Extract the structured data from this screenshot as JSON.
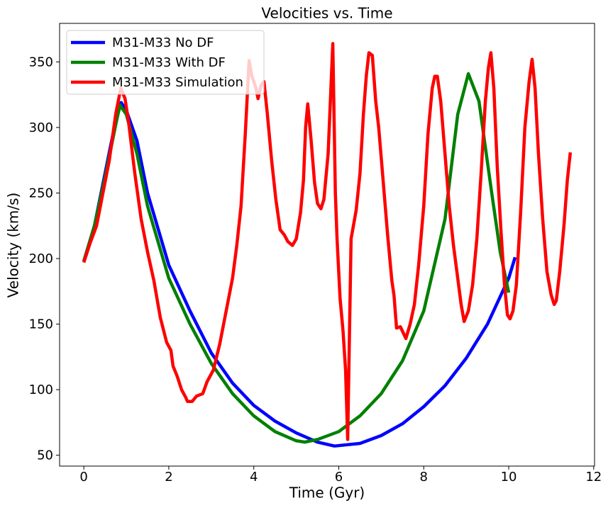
{
  "chart_data": {
    "type": "line",
    "title": "Velocities vs. Time",
    "x_label": "Time (Gyr)",
    "y_label": "Velocity (km/s)",
    "xlim": [
      -0.57,
      12.02
    ],
    "ylim": [
      41.7,
      379.4
    ],
    "xticks": [
      0,
      2,
      4,
      6,
      8,
      10,
      12
    ],
    "yticks": [
      50,
      100,
      150,
      200,
      250,
      300,
      350
    ],
    "legend": "upper left",
    "series": [
      {
        "name": "M31-M33 No DF",
        "color": "#0000ff",
        "x": [
          0,
          0.25,
          0.5,
          0.75,
          0.88,
          1,
          1.25,
          1.5,
          2,
          2.5,
          3,
          3.5,
          4,
          4.5,
          5,
          5.5,
          5.9,
          6.5,
          7,
          7.5,
          8,
          8.5,
          9,
          9.5,
          10,
          10.15
        ],
        "values": [
          198,
          225,
          265,
          305,
          319,
          313,
          290,
          250,
          195,
          160,
          128,
          105,
          88,
          76,
          67,
          60,
          57,
          59,
          65,
          74,
          87,
          103,
          124,
          150,
          185,
          201
        ]
      },
      {
        "name": "M31-M33 With DF",
        "color": "#008000",
        "x": [
          0,
          0.25,
          0.5,
          0.75,
          0.85,
          1,
          1.25,
          1.5,
          2,
          2.5,
          3,
          3.5,
          4,
          4.5,
          5,
          5.2,
          5.5,
          6,
          6.5,
          7,
          7.5,
          8,
          8.5,
          8.8,
          9.05,
          9.3,
          9.6,
          9.8,
          10
        ],
        "values": [
          198,
          225,
          262,
          302,
          317,
          310,
          280,
          240,
          185,
          150,
          120,
          97,
          80,
          68,
          61,
          60,
          62,
          68,
          80,
          97,
          122,
          160,
          230,
          310,
          341,
          320,
          250,
          205,
          174
        ]
      },
      {
        "name": "M31-M33 Simulation",
        "color": "#ff0000",
        "x": [
          0,
          0.15,
          0.3,
          0.45,
          0.6,
          0.75,
          0.87,
          0.97,
          1.05,
          1.2,
          1.35,
          1.5,
          1.65,
          1.8,
          1.95,
          2.05,
          2.1,
          2.2,
          2.3,
          2.4,
          2.44,
          2.55,
          2.65,
          2.8,
          2.9,
          3.05,
          3.2,
          3.35,
          3.5,
          3.6,
          3.7,
          3.8,
          3.89,
          3.95,
          4.05,
          4.1,
          4.17,
          4.24,
          4.32,
          4.42,
          4.52,
          4.62,
          4.72,
          4.8,
          4.91,
          5.0,
          5.1,
          5.17,
          5.22,
          5.27,
          5.35,
          5.43,
          5.5,
          5.58,
          5.65,
          5.75,
          5.86,
          5.92,
          5.96,
          6.03,
          6.1,
          6.16,
          6.21,
          6.29,
          6.41,
          6.5,
          6.58,
          6.65,
          6.71,
          6.79,
          6.87,
          6.94,
          7.03,
          7.15,
          7.25,
          7.3,
          7.36,
          7.45,
          7.58,
          7.68,
          7.78,
          7.88,
          8.0,
          8.1,
          8.2,
          8.26,
          8.32,
          8.4,
          8.5,
          8.6,
          8.7,
          8.8,
          8.88,
          8.95,
          9.05,
          9.15,
          9.25,
          9.35,
          9.45,
          9.52,
          9.58,
          9.65,
          9.73,
          9.82,
          9.9,
          9.97,
          10.03,
          10.1,
          10.18,
          10.28,
          10.38,
          10.48,
          10.55,
          10.62,
          10.7,
          10.8,
          10.9,
          11.0,
          11.07,
          11.12,
          11.2,
          11.3,
          11.38,
          11.45
        ],
        "values": [
          197,
          212,
          225,
          250,
          275,
          310,
          330,
          322,
          305,
          265,
          230,
          205,
          183,
          155,
          136,
          130,
          118,
          110,
          100,
          94,
          91,
          91,
          95,
          97,
          106,
          115,
          135,
          160,
          185,
          210,
          240,
          295,
          351,
          340,
          330,
          322,
          332,
          335,
          310,
          275,
          245,
          222,
          218,
          213,
          210,
          215,
          235,
          260,
          300,
          318,
          290,
          258,
          242,
          238,
          245,
          280,
          364,
          250,
          215,
          170,
          145,
          115,
          62,
          215,
          237,
          265,
          310,
          340,
          357,
          355,
          320,
          300,
          265,
          218,
          183,
          172,
          147,
          148,
          139,
          150,
          165,
          195,
          240,
          295,
          330,
          339,
          339,
          320,
          280,
          240,
          210,
          185,
          165,
          152,
          160,
          180,
          215,
          265,
          320,
          345,
          357,
          330,
          270,
          220,
          180,
          157,
          154,
          160,
          180,
          235,
          300,
          335,
          352,
          330,
          280,
          230,
          190,
          172,
          165,
          168,
          190,
          225,
          260,
          281
        ]
      }
    ]
  }
}
